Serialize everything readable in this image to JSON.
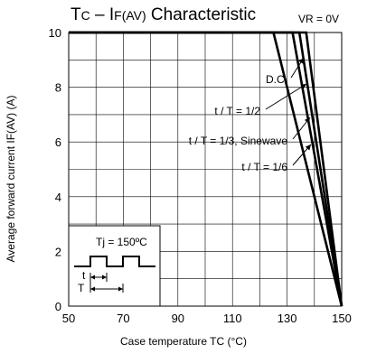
{
  "chart_data": {
    "type": "line",
    "title": "TC – IF(AV) Characteristic",
    "condition": "VR = 0V",
    "xlabel": "Case temperature TC (°C)",
    "ylabel": "Average forward current IF(AV) (A)",
    "xlim": [
      50,
      150
    ],
    "ylim": [
      0,
      10
    ],
    "xticks": [
      50,
      70,
      90,
      110,
      130,
      150
    ],
    "yticks": [
      0,
      2,
      4,
      6,
      8,
      10
    ],
    "grid": true,
    "series": [
      {
        "name": "D.C.",
        "x": [
          50,
          137,
          150
        ],
        "y": [
          10,
          10,
          0
        ]
      },
      {
        "name": "t/T = 1/2",
        "x": [
          50,
          134.5,
          150
        ],
        "y": [
          10,
          10,
          0
        ]
      },
      {
        "name": "t/T = 1/3, Sinewave",
        "x": [
          50,
          132,
          150
        ],
        "y": [
          10,
          10,
          0
        ]
      },
      {
        "name": "t/T = 1/6",
        "x": [
          50,
          125,
          150
        ],
        "y": [
          10,
          10,
          0
        ]
      }
    ],
    "annotations": [
      {
        "text": "D.C.",
        "target_series": 0
      },
      {
        "text": "t / T = 1/2",
        "target_series": 1
      },
      {
        "text": "t / T = 1/3, Sinewave",
        "target_series": 2
      },
      {
        "text": "t / T = 1/6",
        "target_series": 3
      }
    ],
    "inset": {
      "tj": "Tj = 150ºC",
      "t": "t",
      "T": "T"
    }
  }
}
